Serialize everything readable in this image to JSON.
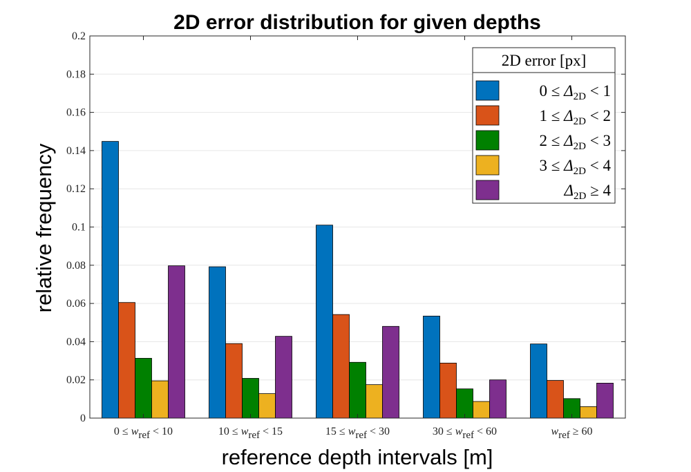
{
  "chart_data": {
    "type": "bar",
    "title": "2D error distribution for given depths",
    "xlabel": "reference depth intervals [m]",
    "ylabel": "relative frequency",
    "ylim": [
      0,
      0.2
    ],
    "yticks": [
      "0",
      "0.02",
      "0.04",
      "0.06",
      "0.08",
      "0.1",
      "0.12",
      "0.14",
      "0.16",
      "0.18",
      "0.2"
    ],
    "grid": true,
    "categories": [
      {
        "pre": "0 ≤ ",
        "var": "w",
        "sub": "ref",
        "post": " < 10"
      },
      {
        "pre": "10 ≤ ",
        "var": "w",
        "sub": "ref",
        "post": " < 15"
      },
      {
        "pre": "15 ≤ ",
        "var": "w",
        "sub": "ref",
        "post": " < 30"
      },
      {
        "pre": "30 ≤ ",
        "var": "w",
        "sub": "ref",
        "post": " < 60"
      },
      {
        "pre": "",
        "var": "w",
        "sub": "ref",
        "post": " ≥ 60"
      }
    ],
    "legend_title": "2D error [px]",
    "legend_position": "top-right",
    "series": [
      {
        "name": {
          "pre": "0 ≤ ",
          "var": "Δ",
          "sub": "2D",
          "post": " < 1"
        },
        "color": "#0072BD",
        "values": [
          0.1448,
          0.0792,
          0.101,
          0.0534,
          0.0388
        ]
      },
      {
        "name": {
          "pre": "1 ≤ ",
          "var": "Δ",
          "sub": "2D",
          "post": " < 2"
        },
        "color": "#D95319",
        "values": [
          0.0605,
          0.039,
          0.0542,
          0.0288,
          0.0197
        ]
      },
      {
        "name": {
          "pre": "2 ≤ ",
          "var": "Δ",
          "sub": "2D",
          "post": " < 3"
        },
        "color": "#008000",
        "values": [
          0.0313,
          0.0208,
          0.0292,
          0.0153,
          0.0102
        ]
      },
      {
        "name": {
          "pre": "3 ≤ ",
          "var": "Δ",
          "sub": "2D",
          "post": " < 4"
        },
        "color": "#EDB120",
        "values": [
          0.0195,
          0.0128,
          0.0175,
          0.0087,
          0.006
        ]
      },
      {
        "name": {
          "pre": "",
          "var": "Δ",
          "sub": "2D",
          "post": " ≥ 4"
        },
        "color": "#7E2F8E",
        "values": [
          0.0797,
          0.0428,
          0.048,
          0.02,
          0.0183
        ]
      }
    ]
  }
}
